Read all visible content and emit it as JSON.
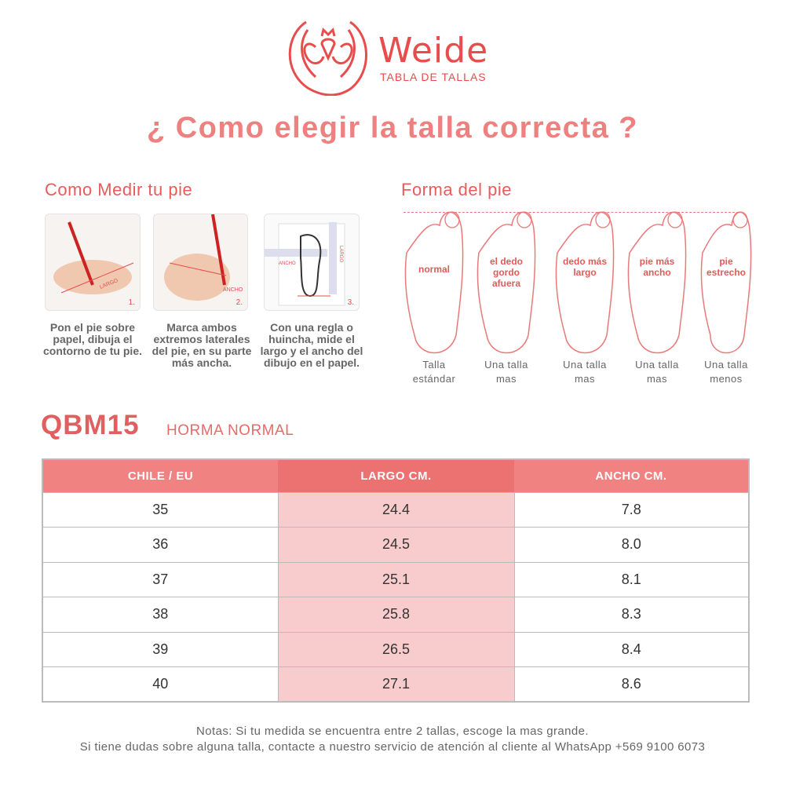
{
  "header": {
    "brand": "Weide",
    "subtitle": "TABLA DE TALLAS",
    "title": "¿ Como elegir la talla correcta ?",
    "brand_color": "#e84c4c"
  },
  "measure": {
    "heading": "Como Medir tu pie",
    "steps": [
      {
        "num": "1.",
        "image_label": "LARGO",
        "caption": "Pon el pie sobre papel, dibuja el contorno de tu pie."
      },
      {
        "num": "2.",
        "image_label": "ANCHO",
        "caption": "Marca ambos extremos laterales del pie, en su parte más ancha."
      },
      {
        "num": "3.",
        "image_label": "ANCHO",
        "image_label2": "LARGO",
        "caption": "Con una regla o huincha, mide el largo y el ancho del dibujo en el papel."
      }
    ]
  },
  "shape": {
    "heading": "Forma del pie",
    "feet": [
      {
        "label": "normal",
        "l1": "Talla",
        "l2": "estándar"
      },
      {
        "label": "el dedo gordo afuera",
        "l1": "Una talla",
        "l2": "mas"
      },
      {
        "label": "dedo más largo",
        "l1": "Una talla",
        "l2": "mas"
      },
      {
        "label": "pie más ancho",
        "l1": "Una talla",
        "l2": "mas"
      },
      {
        "label": "pie estrecho",
        "l1": "Una talla",
        "l2": "menos"
      }
    ]
  },
  "model": {
    "code": "QBM15",
    "fit": "HORMA NORMAL"
  },
  "table": {
    "headers": [
      "CHILE / EU",
      "LARGO CM.",
      "ANCHO CM."
    ],
    "rows": [
      [
        "35",
        "24.4",
        "7.8"
      ],
      [
        "36",
        "24.5",
        "8.0"
      ],
      [
        "37",
        "25.1",
        "8.1"
      ],
      [
        "38",
        "25.8",
        "8.3"
      ],
      [
        "39",
        "26.5",
        "8.4"
      ],
      [
        "40",
        "27.1",
        "8.6"
      ]
    ],
    "header_color": "#f08282",
    "highlight_color": "#f8cccc"
  },
  "notes": [
    "Notas: Si tu medida se encuentra entre 2 tallas, escoge la mas grande.",
    "Si tiene dudas sobre alguna talla, contacte a nuestro servicio de atención al cliente al WhatsApp +569 9100 6073"
  ]
}
